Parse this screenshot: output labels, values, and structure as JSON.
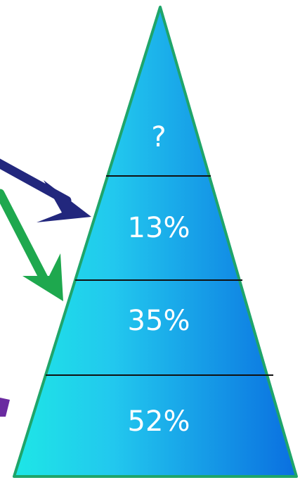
{
  "pyramid": {
    "tiers": [
      {
        "label": "?"
      },
      {
        "label": "13%"
      },
      {
        "label": "35%"
      },
      {
        "label": "52%"
      }
    ]
  },
  "colors": {
    "fill_left": "#1ee6e6",
    "fill_mid": "#22c8ee",
    "fill_right": "#0a6fe0",
    "outline": "#1fa56a",
    "divider": "#111111",
    "arrow_navy": "#22277d",
    "arrow_green": "#1ea84e",
    "arrow_purple": "#6a2aa0",
    "text": "#ffffff"
  }
}
